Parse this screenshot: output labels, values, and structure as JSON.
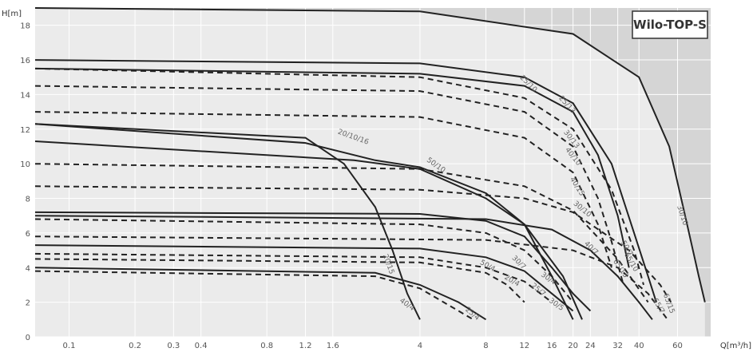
{
  "chart_data": {
    "type": "line",
    "title": "Wilo-TOP-S",
    "xlabel": "Q[m³/h]",
    "ylabel": "H[m]",
    "x_scale": "log",
    "xlim": [
      0.07,
      85
    ],
    "ylim": [
      0,
      19
    ],
    "x_ticks": [
      "0.1",
      "0.2",
      "0.3",
      "0.4",
      "0.8",
      "1.2",
      "1.6",
      "4",
      "8",
      "12",
      "16",
      "20",
      "24",
      "32",
      "40",
      "60"
    ],
    "y_ticks": [
      "0",
      "2",
      "4",
      "6",
      "8",
      "10",
      "12",
      "14",
      "16",
      "18"
    ],
    "background_colors": {
      "grid_fill": "#d5d5d5",
      "operating_area": "#ebebeb",
      "curve": "#222222"
    },
    "series": [
      {
        "name": "30/10",
        "style": "solid",
        "points": [
          [
            0.07,
            19
          ],
          [
            4,
            18.8
          ],
          [
            20,
            17.5
          ],
          [
            40,
            15
          ],
          [
            55,
            11
          ],
          [
            65,
            7
          ],
          [
            75,
            3.5
          ],
          [
            80,
            2
          ]
        ]
      },
      {
        "name": "25/13",
        "style": "solid",
        "points": [
          [
            0.07,
            16
          ],
          [
            4,
            15.8
          ],
          [
            12,
            15
          ],
          [
            20,
            13.5
          ],
          [
            30,
            10
          ],
          [
            38,
            6
          ],
          [
            44,
            3.5
          ],
          [
            48,
            2
          ]
        ]
      },
      {
        "name": "30/13",
        "style": "dashed",
        "points": [
          [
            0.07,
            15.5
          ],
          [
            4,
            15
          ],
          [
            12,
            13.8
          ],
          [
            20,
            12
          ],
          [
            30,
            8.5
          ],
          [
            38,
            5
          ],
          [
            42,
            3
          ]
        ]
      },
      {
        "name": "25/10",
        "style": "solid",
        "points": [
          [
            0.07,
            15.5
          ],
          [
            4,
            15.2
          ],
          [
            12,
            14.5
          ],
          [
            20,
            13
          ],
          [
            26,
            10.5
          ],
          [
            32,
            7
          ],
          [
            36,
            4
          ]
        ]
      },
      {
        "name": "25/13",
        "style": "dashed",
        "points": [
          [
            0.07,
            14.5
          ],
          [
            4,
            14.2
          ],
          [
            12,
            13
          ],
          [
            20,
            11
          ],
          [
            26,
            8
          ],
          [
            30,
            5.5
          ],
          [
            34,
            3
          ]
        ]
      },
      {
        "name": "40/15",
        "style": "dashed",
        "points": [
          [
            0.07,
            13
          ],
          [
            4,
            12.7
          ],
          [
            12,
            11.5
          ],
          [
            20,
            9.5
          ],
          [
            26,
            6.5
          ],
          [
            30,
            4
          ]
        ]
      },
      {
        "name": "20/10/16",
        "style": "solid",
        "points": [
          [
            0.07,
            12.3
          ],
          [
            1.2,
            11.2
          ],
          [
            2.5,
            10.2
          ],
          [
            4,
            9.8
          ],
          [
            8,
            8.3
          ],
          [
            12,
            6.5
          ],
          [
            16,
            3.5
          ],
          [
            20,
            1
          ]
        ]
      },
      {
        "name": "30/7",
        "style": "solid",
        "points": [
          [
            0.07,
            11.3
          ],
          [
            2,
            10.2
          ],
          [
            4,
            9.7
          ],
          [
            8,
            8
          ],
          [
            12,
            6.5
          ],
          [
            18,
            3.5
          ],
          [
            22,
            1
          ]
        ]
      },
      {
        "name": "30/10",
        "style": "dashed",
        "points": [
          [
            0.07,
            10
          ],
          [
            4,
            9.7
          ],
          [
            12,
            8.7
          ],
          [
            20,
            7.3
          ],
          [
            32,
            4.5
          ],
          [
            44,
            2
          ]
        ]
      },
      {
        "name": "50/7",
        "style": "dashed",
        "points": [
          [
            0.07,
            8.7
          ],
          [
            4,
            8.5
          ],
          [
            12,
            8
          ],
          [
            20,
            7.2
          ],
          [
            36,
            5
          ],
          [
            50,
            3
          ],
          [
            56,
            2
          ]
        ]
      },
      {
        "name": "20/15",
        "style": "solid",
        "points": [
          [
            0.07,
            12.3
          ],
          [
            1.2,
            11.5
          ],
          [
            1.8,
            10
          ],
          [
            2.5,
            7.5
          ],
          [
            3,
            5
          ],
          [
            3.5,
            2.5
          ],
          [
            4,
            1
          ]
        ]
      },
      {
        "name": "30/5",
        "style": "solid",
        "points": [
          [
            0.07,
            7.2
          ],
          [
            4,
            7.1
          ],
          [
            8,
            6.7
          ],
          [
            12,
            5.8
          ],
          [
            16,
            4
          ],
          [
            20,
            2.5
          ],
          [
            24,
            1.5
          ]
        ]
      },
      {
        "name": "40/7",
        "style": "solid",
        "points": [
          [
            0.07,
            7
          ],
          [
            8,
            6.8
          ],
          [
            16,
            6.2
          ],
          [
            24,
            5
          ],
          [
            32,
            3.5
          ],
          [
            40,
            2
          ],
          [
            46,
            1
          ]
        ]
      },
      {
        "name": "25/7",
        "style": "dashed",
        "points": [
          [
            0.07,
            6.8
          ],
          [
            4,
            6.5
          ],
          [
            8,
            6
          ],
          [
            12,
            5
          ],
          [
            16,
            3.5
          ],
          [
            20,
            2
          ]
        ]
      },
      {
        "name": "65/7",
        "style": "dashed",
        "points": [
          [
            0.07,
            5.8
          ],
          [
            8,
            5.6
          ],
          [
            20,
            5
          ],
          [
            32,
            4
          ],
          [
            44,
            2.5
          ],
          [
            54,
            1
          ]
        ]
      },
      {
        "name": "50/4",
        "style": "solid",
        "points": [
          [
            0.07,
            5.3
          ],
          [
            4,
            5.1
          ],
          [
            8,
            4.6
          ],
          [
            12,
            3.8
          ],
          [
            16,
            2.5
          ],
          [
            20,
            1.5
          ]
        ]
      },
      {
        "name": "30/4",
        "style": "dashed",
        "points": [
          [
            0.07,
            4.8
          ],
          [
            4,
            4.6
          ],
          [
            8,
            4
          ],
          [
            12,
            3.2
          ],
          [
            16,
            2
          ]
        ]
      },
      {
        "name": "20/4",
        "style": "dashed",
        "points": [
          [
            0.07,
            4.5
          ],
          [
            4,
            4.3
          ],
          [
            8,
            3.7
          ],
          [
            10,
            3
          ],
          [
            12,
            2
          ]
        ]
      },
      {
        "name": "25/4",
        "style": "solid",
        "points": [
          [
            0.07,
            4
          ],
          [
            2.5,
            3.7
          ],
          [
            4,
            3
          ],
          [
            6,
            2
          ],
          [
            8,
            1
          ]
        ]
      },
      {
        "name": "",
        "style": "dashed",
        "points": [
          [
            0.07,
            3.8
          ],
          [
            2.5,
            3.5
          ],
          [
            4,
            2.8
          ],
          [
            6,
            1.5
          ],
          [
            7,
            1
          ]
        ]
      }
    ],
    "labels": [
      "30/10",
      "25/13",
      "30/13",
      "40/15",
      "25/10",
      "50/7",
      "30/10",
      "40/10",
      "40/7",
      "50/10",
      "65/13",
      "30/7",
      "20/10/16",
      "25/7",
      "30/5",
      "40/4",
      "25/4",
      "20/15",
      "30/4",
      "50/4",
      "65/7",
      "65/10",
      "20/4",
      "65/15"
    ]
  }
}
